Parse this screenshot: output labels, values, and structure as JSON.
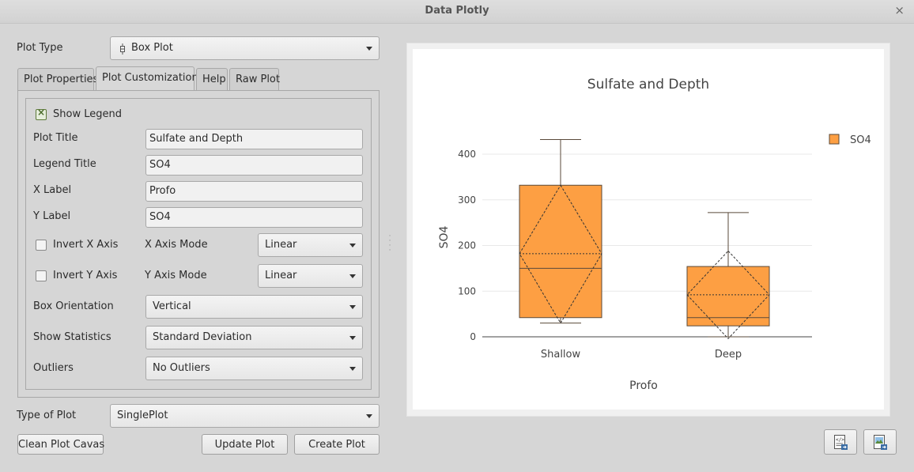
{
  "window": {
    "title": "Data Plotly",
    "close_glyph": "×"
  },
  "plot_type": {
    "label": "Plot Type",
    "value": "Box Plot",
    "icon": "box-plot-icon"
  },
  "tabs": [
    {
      "label": "Plot Properties"
    },
    {
      "label": "Plot Customizations",
      "active": true
    },
    {
      "label": "Help"
    },
    {
      "label": "Raw Plot"
    }
  ],
  "customizations": {
    "show_legend": {
      "label": "Show Legend",
      "checked": true
    },
    "plot_title": {
      "label": "Plot Title",
      "value": "Sulfate and Depth"
    },
    "legend_title": {
      "label": "Legend Title",
      "value": "SO4"
    },
    "x_label": {
      "label": "X Label",
      "value": "Profo"
    },
    "y_label": {
      "label": "Y Label",
      "value": "SO4"
    },
    "invert_x": {
      "label": "Invert X Axis",
      "checked": false
    },
    "x_axis_mode": {
      "label": "X Axis Mode",
      "value": "Linear"
    },
    "invert_y": {
      "label": "Invert Y Axis",
      "checked": false
    },
    "y_axis_mode": {
      "label": "Y Axis Mode",
      "value": "Linear"
    },
    "box_orientation": {
      "label": "Box Orientation",
      "value": "Vertical"
    },
    "show_statistics": {
      "label": "Show Statistics",
      "value": "Standard Deviation"
    },
    "outliers": {
      "label": "Outliers",
      "value": "No Outliers"
    }
  },
  "type_of_plot": {
    "label": "Type of Plot",
    "value": "SinglePlot"
  },
  "buttons": {
    "clean": "Clean Plot Cavas",
    "update": "Update Plot",
    "create": "Create Plot"
  },
  "colors": {
    "box_fill": "#fd9f43",
    "box_stroke": "#5a4a3a",
    "background": "#d6d6d6"
  },
  "icons": {
    "export_html": "html-export-icon",
    "export_image": "image-export-icon"
  },
  "chart_data": {
    "type": "box",
    "title": "Sulfate and Depth",
    "xlabel": "Profo",
    "ylabel": "SO4",
    "categories": [
      "Shallow",
      "Deep"
    ],
    "legend": {
      "title": "",
      "entries": [
        "SO4"
      ],
      "placement": "top-right"
    },
    "ylim": [
      -10,
      460
    ],
    "yticks": [
      0,
      100,
      200,
      300,
      400
    ],
    "series": [
      {
        "name": "SO4",
        "boxes": [
          {
            "category": "Shallow",
            "min": 30,
            "q1": 42,
            "median": 150,
            "q3": 332,
            "max": 432,
            "mean": 182,
            "mean_minus_sd": 30,
            "mean_plus_sd": 332
          },
          {
            "category": "Deep",
            "min": 0,
            "q1": 24,
            "median": 42,
            "q3": 154,
            "max": 272,
            "mean": 92,
            "mean_minus_sd": -4,
            "mean_plus_sd": 188
          }
        ]
      }
    ],
    "grid": true
  }
}
